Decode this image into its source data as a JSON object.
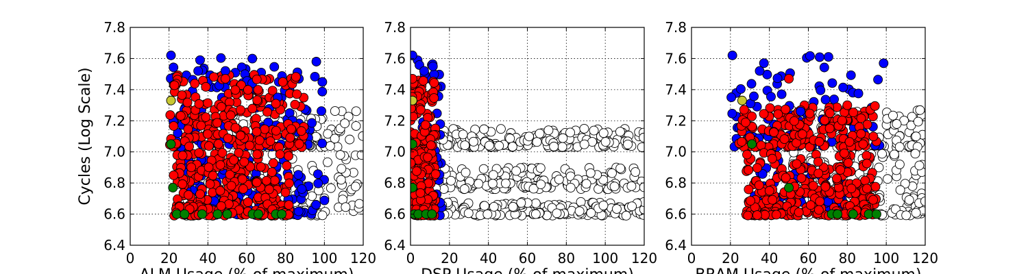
{
  "chart_data": [
    {
      "type": "scatter",
      "xlabel": "ALM Usage (% of maximum)",
      "ylabel": "Cycles (Log Scale)",
      "xlim": [
        0,
        120
      ],
      "ylim": [
        6.4,
        7.8
      ],
      "xticks": [
        "0",
        "20",
        "40",
        "60",
        "80",
        "100",
        "120"
      ],
      "yticks": [
        "6.4",
        "6.6",
        "6.8",
        "7.0",
        "7.2",
        "7.4",
        "7.6",
        "7.8"
      ],
      "grid": true,
      "clusters": [
        {
          "color": "#ffffff",
          "x_range": [
            24,
            120
          ],
          "y_range": [
            7.03,
            7.27
          ],
          "n": 120
        },
        {
          "color": "#ffffff",
          "x_range": [
            24,
            120
          ],
          "y_range": [
            6.59,
            7.0
          ],
          "n": 160
        },
        {
          "color": "#0000ff",
          "x_range": [
            20,
            100
          ],
          "y_range": [
            7.03,
            7.62
          ],
          "n": 110
        },
        {
          "color": "#0000ff",
          "x_range": [
            24,
            100
          ],
          "y_range": [
            6.59,
            6.95
          ],
          "n": 110
        },
        {
          "color": "#ff0000",
          "x_range": [
            20,
            90
          ],
          "y_range": [
            7.03,
            7.5
          ],
          "n": 200
        },
        {
          "color": "#ff0000",
          "x_range": [
            22,
            82
          ],
          "y_range": [
            6.59,
            7.0
          ],
          "n": 260
        }
      ],
      "points": [
        {
          "x": 21,
          "y": 7.05,
          "color": "#008000"
        },
        {
          "x": 22,
          "y": 6.77,
          "color": "#008000"
        },
        {
          "x": 24,
          "y": 6.6,
          "color": "#008000"
        },
        {
          "x": 28,
          "y": 6.6,
          "color": "#008000"
        },
        {
          "x": 37,
          "y": 6.6,
          "color": "#008000"
        },
        {
          "x": 45,
          "y": 6.6,
          "color": "#008000"
        },
        {
          "x": 50,
          "y": 6.6,
          "color": "#008000"
        },
        {
          "x": 63,
          "y": 6.6,
          "color": "#008000"
        },
        {
          "x": 66,
          "y": 6.6,
          "color": "#008000"
        },
        {
          "x": 75,
          "y": 6.6,
          "color": "#008000"
        },
        {
          "x": 78,
          "y": 6.6,
          "color": "#008000"
        },
        {
          "x": 21,
          "y": 7.33,
          "color": "#c8c832"
        },
        {
          "x": 21,
          "y": 7.62,
          "color": "#0000ff"
        },
        {
          "x": 35,
          "y": 7.52,
          "color": "#0000ff"
        },
        {
          "x": 49,
          "y": 7.52,
          "color": "#0000ff"
        },
        {
          "x": 76,
          "y": 7.35,
          "color": "#0000ff"
        },
        {
          "x": 49,
          "y": 7.47,
          "color": "#ff0000"
        },
        {
          "x": 75,
          "y": 7.31,
          "color": "#ff0000"
        }
      ]
    },
    {
      "type": "scatter",
      "xlabel": "DSP Usage (% of maximum)",
      "ylabel": "",
      "xlim": [
        0,
        120
      ],
      "ylim": [
        6.4,
        7.8
      ],
      "xticks": [
        "0",
        "20",
        "40",
        "60",
        "80",
        "100",
        "120"
      ],
      "yticks": [
        "6.4",
        "6.6",
        "6.8",
        "7.0",
        "7.2",
        "7.4",
        "7.6",
        "7.8"
      ],
      "grid": true,
      "clusters": [
        {
          "color": "#ffffff",
          "x_range": [
            12,
            120
          ],
          "y_range": [
            7.03,
            7.15
          ],
          "n": 170
        },
        {
          "color": "#ffffff",
          "x_range": [
            12,
            120
          ],
          "y_range": [
            6.76,
            6.9
          ],
          "n": 150
        },
        {
          "color": "#ffffff",
          "x_range": [
            12,
            120
          ],
          "y_range": [
            6.59,
            6.68
          ],
          "n": 170
        },
        {
          "color": "#0000ff",
          "x_range": [
            0,
            16
          ],
          "y_range": [
            6.59,
            7.62
          ],
          "n": 90
        },
        {
          "color": "#ff0000",
          "x_range": [
            0,
            13
          ],
          "y_range": [
            6.59,
            7.47
          ],
          "n": 230
        }
      ],
      "points": [
        {
          "x": 1,
          "y": 7.05,
          "color": "#008000"
        },
        {
          "x": 1,
          "y": 6.77,
          "color": "#008000"
        },
        {
          "x": 2,
          "y": 6.6,
          "color": "#008000"
        },
        {
          "x": 4,
          "y": 6.6,
          "color": "#008000"
        },
        {
          "x": 8,
          "y": 6.6,
          "color": "#008000"
        },
        {
          "x": 11,
          "y": 6.6,
          "color": "#008000"
        },
        {
          "x": 1,
          "y": 7.33,
          "color": "#c8c832"
        },
        {
          "x": 1,
          "y": 7.62,
          "color": "#0000ff"
        },
        {
          "x": 7,
          "y": 7.52,
          "color": "#0000ff"
        },
        {
          "x": 1,
          "y": 7.47,
          "color": "#ff0000"
        }
      ]
    },
    {
      "type": "scatter",
      "xlabel": "BRAM Usage (% of maximum)",
      "ylabel": "",
      "xlim": [
        0,
        120
      ],
      "ylim": [
        6.4,
        7.8
      ],
      "xticks": [
        "0",
        "20",
        "40",
        "60",
        "80",
        "100",
        "120"
      ],
      "yticks": [
        "6.4",
        "6.6",
        "6.8",
        "7.0",
        "7.2",
        "7.4",
        "7.6",
        "7.8"
      ],
      "grid": true,
      "clusters": [
        {
          "color": "#ffffff",
          "x_range": [
            40,
            120
          ],
          "y_range": [
            7.03,
            7.27
          ],
          "n": 110
        },
        {
          "color": "#ffffff",
          "x_range": [
            40,
            120
          ],
          "y_range": [
            6.59,
            7.0
          ],
          "n": 160
        },
        {
          "color": "#0000ff",
          "x_range": [
            20,
            100
          ],
          "y_range": [
            7.03,
            7.62
          ],
          "n": 80
        },
        {
          "color": "#0000ff",
          "x_range": [
            30,
            80
          ],
          "y_range": [
            6.62,
            6.95
          ],
          "n": 60
        },
        {
          "color": "#ff0000",
          "x_range": [
            22,
            95
          ],
          "y_range": [
            7.03,
            7.3
          ],
          "n": 170
        },
        {
          "color": "#ff0000",
          "x_range": [
            28,
            95
          ],
          "y_range": [
            6.59,
            7.0
          ],
          "n": 260
        }
      ],
      "points": [
        {
          "x": 31,
          "y": 7.05,
          "color": "#008000"
        },
        {
          "x": 50,
          "y": 6.77,
          "color": "#008000"
        },
        {
          "x": 72,
          "y": 6.6,
          "color": "#008000"
        },
        {
          "x": 75,
          "y": 6.6,
          "color": "#008000"
        },
        {
          "x": 83,
          "y": 6.6,
          "color": "#008000"
        },
        {
          "x": 91,
          "y": 6.6,
          "color": "#008000"
        },
        {
          "x": 95,
          "y": 6.6,
          "color": "#008000"
        },
        {
          "x": 26,
          "y": 7.33,
          "color": "#c8c832"
        },
        {
          "x": 21,
          "y": 7.62,
          "color": "#0000ff"
        },
        {
          "x": 35,
          "y": 7.52,
          "color": "#0000ff"
        },
        {
          "x": 56,
          "y": 7.26,
          "color": "#0000ff"
        },
        {
          "x": 50,
          "y": 7.47,
          "color": "#ff0000"
        },
        {
          "x": 80,
          "y": 7.3,
          "color": "#ff0000"
        }
      ]
    }
  ]
}
